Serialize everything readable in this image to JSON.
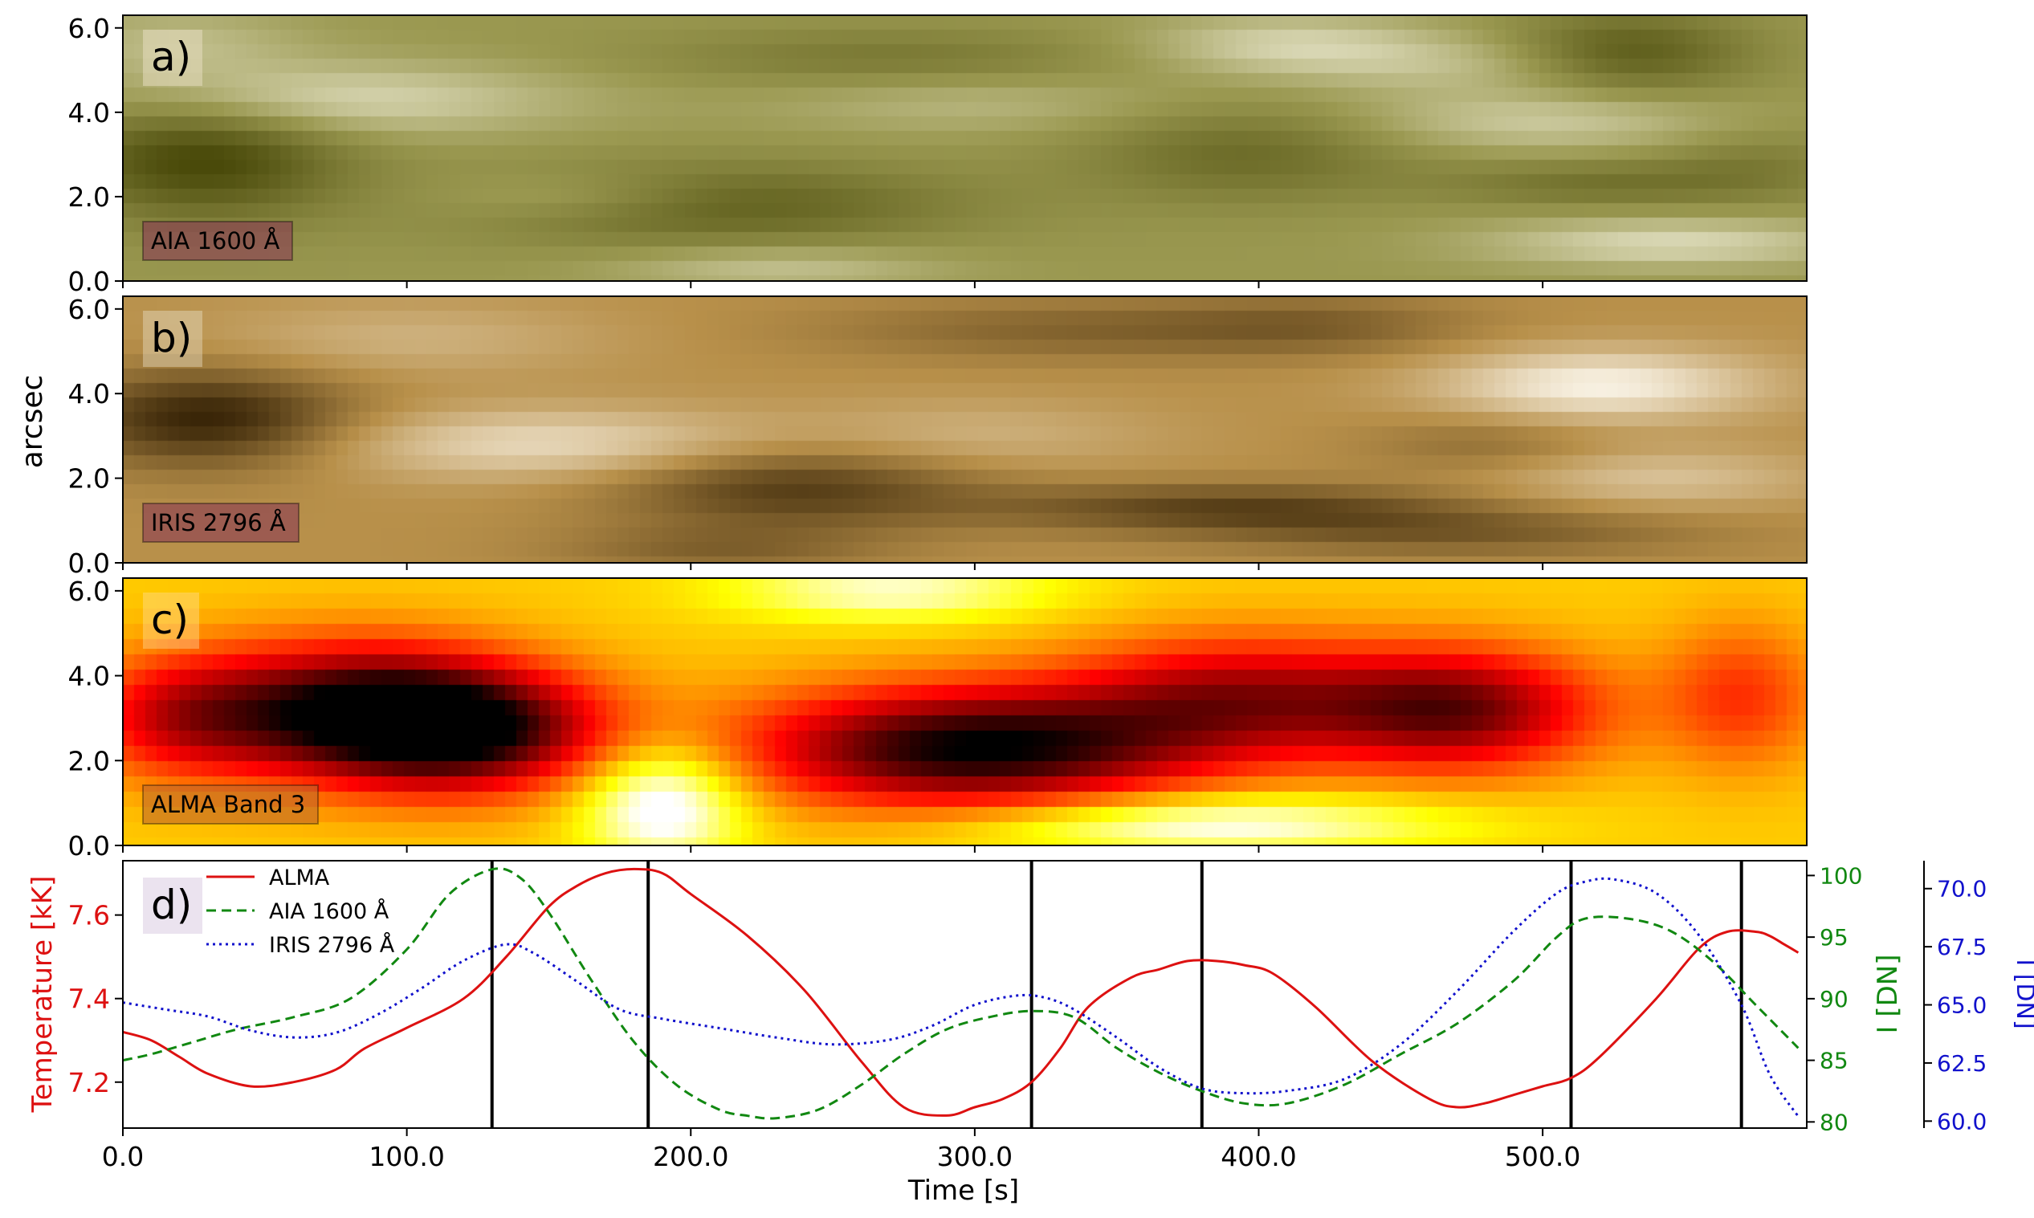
{
  "figure": {
    "shared_ylabel": "arcsec",
    "shared_xlabel": "Time [s]",
    "x_ticks": [
      "0.0",
      "100.0",
      "200.0",
      "300.0",
      "400.0",
      "500.0"
    ],
    "y_ticks_maps": [
      "0.0",
      "2.0",
      "4.0",
      "6.0"
    ]
  },
  "chart_data": [
    {
      "type": "heatmap",
      "panel_label": "a)",
      "badge": "AIA 1600 Å",
      "colormap": "olive",
      "colors": {
        "dark": "#4a4a0a",
        "mid": "#9a9850",
        "light": "#f2f0dc",
        "badge": "#8b3a55"
      },
      "xlim": [
        0,
        593
      ],
      "ylim": [
        0,
        6.3
      ],
      "blobs": [
        {
          "x": 28,
          "y": 2.9,
          "sx": 35,
          "sy": 1.0,
          "a": -1.3
        },
        {
          "x": 75,
          "y": 4.3,
          "sx": 55,
          "sy": 0.6,
          "a": 0.9
        },
        {
          "x": 20,
          "y": 5.6,
          "sx": 30,
          "sy": 0.6,
          "a": 0.5
        },
        {
          "x": 210,
          "y": 1.8,
          "sx": 60,
          "sy": 0.7,
          "a": -0.9
        },
        {
          "x": 160,
          "y": 2.0,
          "sx": 35,
          "sy": 0.4,
          "a": 0.5
        },
        {
          "x": 230,
          "y": 0.3,
          "sx": 40,
          "sy": 0.4,
          "a": 0.6
        },
        {
          "x": 300,
          "y": 4.2,
          "sx": 50,
          "sy": 0.5,
          "a": 0.4
        },
        {
          "x": 270,
          "y": 5.3,
          "sx": 60,
          "sy": 0.5,
          "a": -0.5
        },
        {
          "x": 395,
          "y": 3.0,
          "sx": 40,
          "sy": 0.8,
          "a": -0.7
        },
        {
          "x": 410,
          "y": 5.6,
          "sx": 35,
          "sy": 0.5,
          "a": 0.8
        },
        {
          "x": 470,
          "y": 5.1,
          "sx": 40,
          "sy": 0.5,
          "a": 0.5
        },
        {
          "x": 530,
          "y": 5.4,
          "sx": 30,
          "sy": 0.7,
          "a": -1.0
        },
        {
          "x": 500,
          "y": 3.8,
          "sx": 45,
          "sy": 0.5,
          "a": 0.7
        },
        {
          "x": 545,
          "y": 0.9,
          "sx": 45,
          "sy": 0.4,
          "a": 0.9
        },
        {
          "x": 520,
          "y": 2.3,
          "sx": 40,
          "sy": 0.4,
          "a": -0.6
        },
        {
          "x": 575,
          "y": 2.8,
          "sx": 25,
          "sy": 0.6,
          "a": -0.4
        }
      ]
    },
    {
      "type": "heatmap",
      "panel_label": "b)",
      "badge": "IRIS 2796 Å",
      "colormap": "copper",
      "colors": {
        "dark": "#3a2608",
        "mid": "#b8904a",
        "light": "#fbf6ea",
        "badge": "#8b3a55"
      },
      "xlim": [
        0,
        593
      ],
      "ylim": [
        0,
        6.3
      ],
      "blobs": [
        {
          "x": 30,
          "y": 3.4,
          "sx": 35,
          "sy": 0.8,
          "a": -1.3
        },
        {
          "x": 150,
          "y": 2.8,
          "sx": 55,
          "sy": 0.6,
          "a": 0.9
        },
        {
          "x": 100,
          "y": 5.3,
          "sx": 50,
          "sy": 0.6,
          "a": 0.4
        },
        {
          "x": 235,
          "y": 1.8,
          "sx": 45,
          "sy": 0.7,
          "a": -1.0
        },
        {
          "x": 210,
          "y": 0.3,
          "sx": 40,
          "sy": 0.4,
          "a": -0.5
        },
        {
          "x": 300,
          "y": 3.0,
          "sx": 45,
          "sy": 0.6,
          "a": 0.4
        },
        {
          "x": 330,
          "y": 5.5,
          "sx": 60,
          "sy": 0.5,
          "a": -0.5
        },
        {
          "x": 390,
          "y": 1.3,
          "sx": 60,
          "sy": 0.4,
          "a": -0.9
        },
        {
          "x": 470,
          "y": 0.7,
          "sx": 60,
          "sy": 0.4,
          "a": -0.6
        },
        {
          "x": 520,
          "y": 4.2,
          "sx": 40,
          "sy": 0.6,
          "a": 1.2
        },
        {
          "x": 540,
          "y": 2.0,
          "sx": 40,
          "sy": 0.5,
          "a": 0.6
        },
        {
          "x": 480,
          "y": 2.8,
          "sx": 30,
          "sy": 0.5,
          "a": -0.4
        },
        {
          "x": 420,
          "y": 5.6,
          "sx": 40,
          "sy": 0.5,
          "a": -0.5
        }
      ]
    },
    {
      "type": "heatmap",
      "panel_label": "c)",
      "badge": "ALMA Band 3",
      "colormap": "hot",
      "colors": {
        "badge": "#c06a2a"
      },
      "xlim": [
        0,
        593
      ],
      "ylim": [
        0,
        6.3
      ],
      "blobs": [
        {
          "x": 80,
          "y": 3.2,
          "sx": 40,
          "sy": 1.1,
          "a": -1.0
        },
        {
          "x": 120,
          "y": 2.7,
          "sx": 35,
          "sy": 1.0,
          "a": -1.0
        },
        {
          "x": 300,
          "y": 2.3,
          "sx": 55,
          "sy": 1.0,
          "a": -1.2
        },
        {
          "x": 390,
          "y": 3.5,
          "sx": 40,
          "sy": 1.0,
          "a": -0.7
        },
        {
          "x": 470,
          "y": 3.2,
          "sx": 35,
          "sy": 1.0,
          "a": -0.9
        },
        {
          "x": 570,
          "y": 3.5,
          "sx": 20,
          "sy": 1.2,
          "a": -0.4
        },
        {
          "x": 20,
          "y": 3.0,
          "sx": 25,
          "sy": 1.0,
          "a": -0.5
        },
        {
          "x": 270,
          "y": 6.0,
          "sx": 40,
          "sy": 0.5,
          "a": 0.4
        },
        {
          "x": 380,
          "y": 0.5,
          "sx": 60,
          "sy": 0.5,
          "a": 0.5
        },
        {
          "x": 190,
          "y": 1.0,
          "sx": 20,
          "sy": 1.0,
          "a": 0.6
        }
      ]
    },
    {
      "type": "line",
      "panel_label": "d)",
      "xlim": [
        0,
        593
      ],
      "xlabel": "Time [s]",
      "ylabel_left": "Temperature [kK]",
      "ylabel_right1": "I [DN]",
      "ylabel_right2": "I [DN]",
      "ylim_left": [
        7.09,
        7.73
      ],
      "ylim_right1": [
        79.5,
        101.2
      ],
      "ylim_right2": [
        59.7,
        71.2
      ],
      "yticks_left": [
        "7.2",
        "7.4",
        "7.6"
      ],
      "yticks_right1": [
        "80",
        "85",
        "90",
        "95",
        "100"
      ],
      "yticks_right2": [
        "60.0",
        "62.5",
        "65.0",
        "67.5",
        "70.0"
      ],
      "vlines": [
        130,
        185,
        320,
        380,
        510,
        570
      ],
      "colors": {
        "alma": "#dd1111",
        "aia": "#118811",
        "iris": "#1111cc"
      },
      "series": [
        {
          "name": "ALMA",
          "axis": "left",
          "style": "solid",
          "x": [
            0,
            10,
            20,
            30,
            45,
            60,
            75,
            85,
            100,
            120,
            135,
            150,
            160,
            170,
            180,
            190,
            200,
            220,
            240,
            260,
            275,
            290,
            300,
            310,
            320,
            330,
            340,
            355,
            365,
            375,
            385,
            395,
            405,
            420,
            440,
            460,
            470,
            480,
            490,
            500,
            510,
            520,
            540,
            555,
            565,
            575,
            580,
            585,
            590
          ],
          "y": [
            7.32,
            7.3,
            7.26,
            7.22,
            7.19,
            7.2,
            7.23,
            7.28,
            7.33,
            7.4,
            7.5,
            7.62,
            7.67,
            7.7,
            7.71,
            7.7,
            7.65,
            7.55,
            7.42,
            7.25,
            7.14,
            7.12,
            7.14,
            7.16,
            7.2,
            7.28,
            7.38,
            7.45,
            7.47,
            7.49,
            7.49,
            7.48,
            7.46,
            7.38,
            7.25,
            7.16,
            7.14,
            7.15,
            7.17,
            7.19,
            7.21,
            7.26,
            7.4,
            7.52,
            7.56,
            7.56,
            7.55,
            7.53,
            7.51
          ]
        },
        {
          "name": "AIA 1600 Å",
          "axis": "right1",
          "style": "dashed",
          "x": [
            0,
            10,
            25,
            40,
            60,
            80,
            100,
            115,
            130,
            140,
            150,
            165,
            180,
            195,
            210,
            220,
            230,
            245,
            260,
            275,
            290,
            305,
            320,
            335,
            350,
            365,
            380,
            395,
            410,
            430,
            450,
            470,
            490,
            505,
            515,
            530,
            545,
            560,
            575,
            590
          ],
          "y": [
            85.0,
            85.5,
            86.5,
            87.5,
            88.5,
            90.0,
            94.0,
            98.5,
            100.5,
            99.8,
            97.0,
            91.5,
            86.5,
            83.0,
            81.0,
            80.5,
            80.3,
            81.0,
            83.0,
            85.5,
            87.5,
            88.5,
            89.0,
            88.5,
            86.0,
            84.0,
            82.5,
            81.5,
            81.5,
            83.0,
            85.5,
            88.0,
            91.5,
            95.0,
            96.5,
            96.5,
            95.5,
            93.0,
            89.5,
            86.0
          ]
        },
        {
          "name": "IRIS 2796 Å",
          "axis": "right2",
          "style": "dotted",
          "x": [
            0,
            15,
            30,
            45,
            60,
            75,
            90,
            105,
            120,
            135,
            145,
            160,
            175,
            190,
            210,
            230,
            250,
            270,
            285,
            300,
            315,
            325,
            335,
            350,
            365,
            380,
            395,
            410,
            430,
            450,
            470,
            490,
            505,
            515,
            525,
            540,
            555,
            570,
            580,
            590
          ],
          "y": [
            65.1,
            64.8,
            64.5,
            63.9,
            63.6,
            63.8,
            64.6,
            65.7,
            66.9,
            67.6,
            67.2,
            66.0,
            64.8,
            64.4,
            64.0,
            63.6,
            63.3,
            63.5,
            64.1,
            65.0,
            65.4,
            65.3,
            64.8,
            63.6,
            62.3,
            61.4,
            61.2,
            61.3,
            61.8,
            63.3,
            65.6,
            68.2,
            69.8,
            70.3,
            70.4,
            69.8,
            68.0,
            65.0,
            62.0,
            60.2
          ]
        }
      ]
    }
  ]
}
